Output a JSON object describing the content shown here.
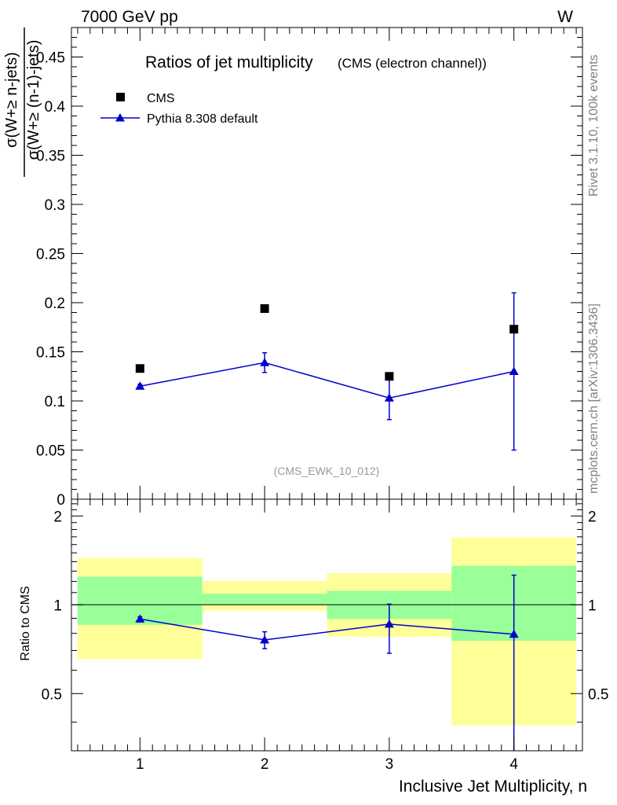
{
  "header": {
    "energy_label": "7000 GeV pp",
    "process_label": "W"
  },
  "side_labels": {
    "rivet": "Rivet 3.1.10,  100k events",
    "mcplots": "mcplots.cern.ch [arXiv:1306.3436]"
  },
  "chart_data": [
    {
      "type": "scatter",
      "title": "Ratios of jet multiplicity",
      "subtitle": "(CMS (electron channel))",
      "analysis_tag": "(CMS_EWK_10_012)",
      "ylabel_numerator": "σ(W+≥ n-jets)",
      "ylabel_denominator": "σ(W+≥ (n-1)-jets)",
      "xlabel": "Inclusive Jet Multiplicity, n",
      "xlim": [
        0.45,
        4.55
      ],
      "ylim": [
        0,
        0.48
      ],
      "xticks": [
        "1",
        "2",
        "3",
        "4"
      ],
      "yticks": [
        "0",
        "0.05",
        "0.1",
        "0.15",
        "0.2",
        "0.25",
        "0.3",
        "0.35",
        "0.4",
        "0.45"
      ],
      "legend_position": "top-left",
      "series": [
        {
          "name": "CMS",
          "style": "markers",
          "marker": "square",
          "color": "#000000",
          "x": [
            1,
            2,
            3,
            4
          ],
          "y": [
            0.133,
            0.194,
            0.125,
            0.173
          ]
        },
        {
          "name": "Pythia 8.308 default",
          "style": "line-markers",
          "marker": "triangle",
          "color": "#0000cc",
          "x": [
            1,
            2,
            3,
            4
          ],
          "y": [
            0.115,
            0.139,
            0.103,
            0.13
          ],
          "err_low": [
            0.002,
            0.01,
            0.022,
            0.08
          ],
          "err_high": [
            0.002,
            0.01,
            0.02,
            0.08
          ]
        }
      ]
    },
    {
      "type": "scatter",
      "ylabel": "Ratio to CMS",
      "xlabel": "Inclusive Jet Multiplicity, n",
      "xlim": [
        0.45,
        4.55
      ],
      "ylim": [
        0.32,
        2.28
      ],
      "log_scale_y": true,
      "yticks": [
        "0.5",
        "1",
        "2"
      ],
      "xticks": [
        "1",
        "2",
        "3",
        "4"
      ],
      "reference_line": 1,
      "bands": [
        {
          "x_low": 0.5,
          "x_high": 1.5,
          "inner_low": 0.855,
          "inner_high": 1.245,
          "outer_low": 0.655,
          "outer_high": 1.44
        },
        {
          "x_low": 1.5,
          "x_high": 2.5,
          "inner_low": 1.0,
          "inner_high": 1.09,
          "outer_low": 0.955,
          "outer_high": 1.205
        },
        {
          "x_low": 2.5,
          "x_high": 3.5,
          "inner_low": 0.895,
          "inner_high": 1.115,
          "outer_low": 0.78,
          "outer_high": 1.28
        },
        {
          "x_low": 3.5,
          "x_high": 4.5,
          "inner_low": 0.755,
          "inner_high": 1.355,
          "outer_low": 0.39,
          "outer_high": 1.69
        }
      ],
      "series": [
        {
          "name": "Pythia 8.308 default",
          "color": "#0000cc",
          "marker": "triangle",
          "x": [
            1,
            2,
            3,
            4
          ],
          "y": [
            0.895,
            0.76,
            0.86,
            0.795
          ],
          "err_low": [
            0.015,
            0.05,
            0.175,
            0.48
          ],
          "err_high": [
            0.015,
            0.05,
            0.145,
            0.465
          ]
        }
      ]
    }
  ],
  "colors": {
    "band_inner": "#99ff99",
    "band_outer": "#ffff99",
    "mc_line": "#0000cc",
    "data_marker": "#000000",
    "side_text": "#808080",
    "tag_text": "#999999"
  }
}
